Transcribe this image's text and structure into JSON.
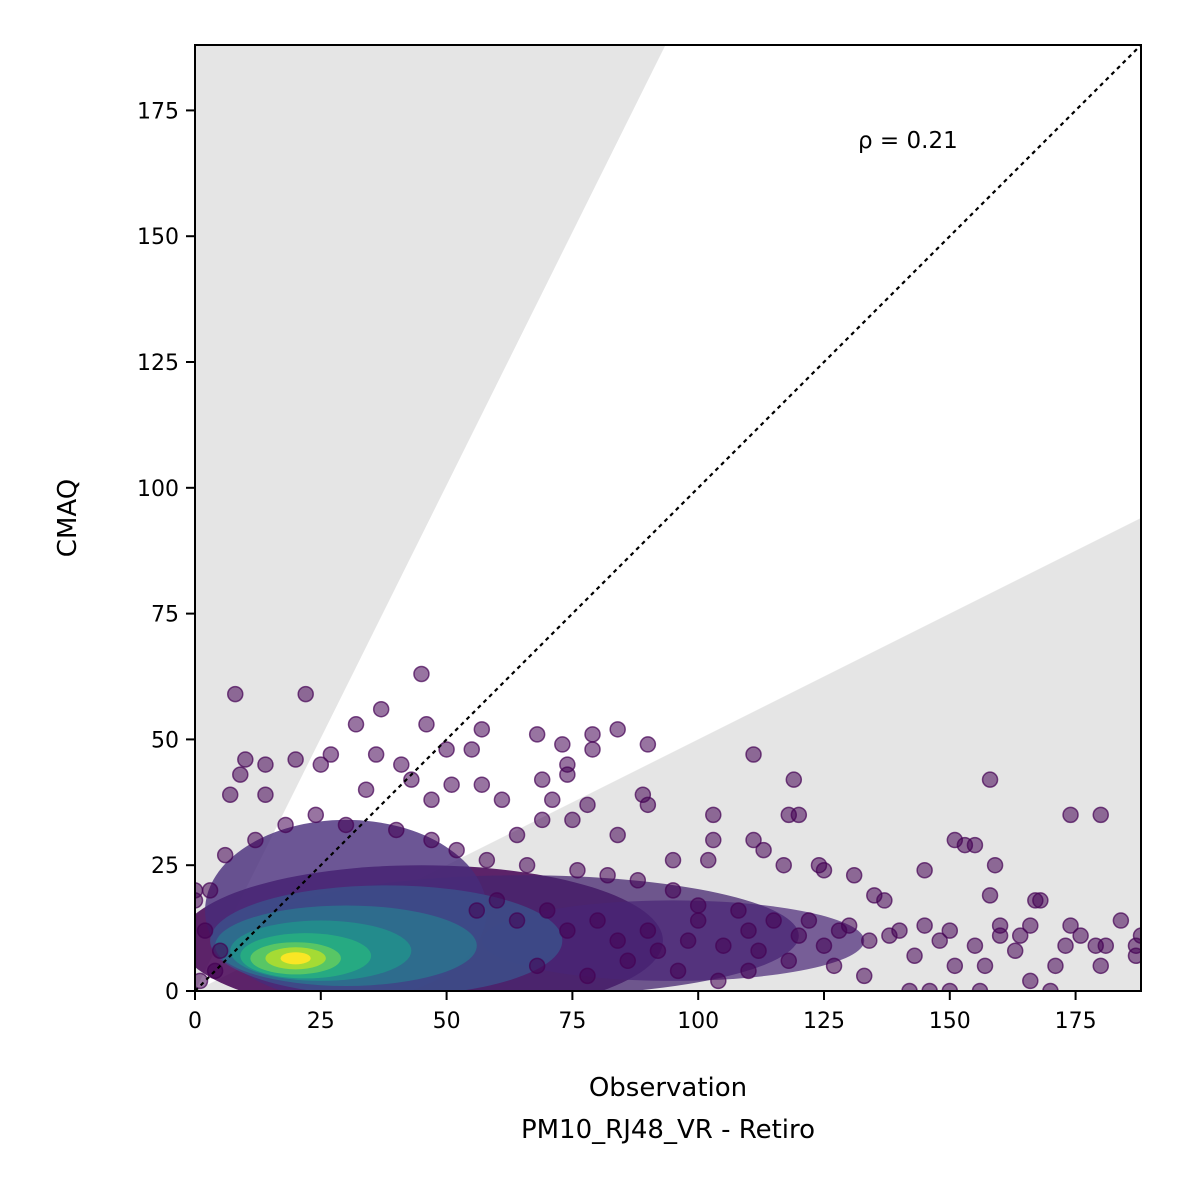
{
  "chart_data": {
    "type": "scatter",
    "title": "",
    "xlabel": "Observation",
    "xlabel_sub": "PM10_RJ48_VR - Retiro",
    "ylabel": "CMAQ",
    "xlim": [
      0,
      188
    ],
    "ylim": [
      0,
      188
    ],
    "x_ticks": [
      0,
      25,
      50,
      75,
      100,
      125,
      150,
      175
    ],
    "y_ticks": [
      0,
      25,
      50,
      75,
      100,
      125,
      150,
      175
    ],
    "annotation": "ρ = 0.21",
    "reference_line": {
      "style": "dotted",
      "color": "#000000",
      "from": [
        0,
        0
      ],
      "to": [
        188,
        188
      ]
    },
    "shaded_regions": [
      {
        "color": "#e5e5e5",
        "polygon": [
          [
            0,
            0
          ],
          [
            0,
            188
          ],
          [
            93.5,
            188
          ]
        ]
      },
      {
        "color": "#e5e5e5",
        "polygon": [
          [
            0,
            0
          ],
          [
            188,
            94
          ],
          [
            188,
            0
          ]
        ]
      }
    ],
    "colormap": "viridis (point density)",
    "grid": false,
    "legend": "none",
    "points": [
      [
        8,
        59
      ],
      [
        22,
        59
      ],
      [
        45,
        63
      ],
      [
        37,
        56
      ],
      [
        32,
        53
      ],
      [
        46,
        53
      ],
      [
        57,
        52
      ],
      [
        68,
        51
      ],
      [
        79,
        51
      ],
      [
        84,
        52
      ],
      [
        90,
        49
      ],
      [
        73,
        49
      ],
      [
        79,
        48
      ],
      [
        50,
        48
      ],
      [
        55,
        48
      ],
      [
        27,
        47
      ],
      [
        36,
        47
      ],
      [
        10,
        46
      ],
      [
        14,
        45
      ],
      [
        20,
        46
      ],
      [
        25,
        45
      ],
      [
        41,
        45
      ],
      [
        74,
        45
      ],
      [
        111,
        47
      ],
      [
        9,
        43
      ],
      [
        43,
        42
      ],
      [
        51,
        41
      ],
      [
        57,
        41
      ],
      [
        69,
        42
      ],
      [
        74,
        43
      ],
      [
        119,
        42
      ],
      [
        158,
        42
      ],
      [
        7,
        39
      ],
      [
        14,
        39
      ],
      [
        34,
        40
      ],
      [
        47,
        38
      ],
      [
        61,
        38
      ],
      [
        71,
        38
      ],
      [
        89,
        39
      ],
      [
        78,
        37
      ],
      [
        90,
        37
      ],
      [
        103,
        35
      ],
      [
        118,
        35
      ],
      [
        120,
        35
      ],
      [
        174,
        35
      ],
      [
        180,
        35
      ],
      [
        69,
        34
      ],
      [
        75,
        34
      ],
      [
        64,
        31
      ],
      [
        84,
        31
      ],
      [
        103,
        30
      ],
      [
        111,
        30
      ],
      [
        151,
        30
      ],
      [
        153,
        29
      ],
      [
        155,
        29
      ],
      [
        113,
        28
      ],
      [
        159,
        25
      ],
      [
        95,
        26
      ],
      [
        102,
        26
      ],
      [
        117,
        25
      ],
      [
        124,
        25
      ],
      [
        131,
        23
      ],
      [
        145,
        24
      ],
      [
        125,
        24
      ],
      [
        135,
        19
      ],
      [
        137,
        18
      ],
      [
        158,
        19
      ],
      [
        167,
        18
      ],
      [
        168,
        18
      ],
      [
        166,
        13
      ],
      [
        174,
        13
      ],
      [
        184,
        14
      ],
      [
        188,
        11
      ],
      [
        173,
        9
      ],
      [
        181,
        9
      ],
      [
        187,
        7
      ],
      [
        187,
        9
      ],
      [
        179,
        9
      ],
      [
        180,
        5
      ],
      [
        171,
        5
      ],
      [
        157,
        5
      ],
      [
        151,
        5
      ],
      [
        163,
        8
      ],
      [
        166,
        2
      ],
      [
        170,
        0
      ],
      [
        146,
        0
      ],
      [
        142,
        0
      ],
      [
        150,
        0
      ],
      [
        156,
        0
      ],
      [
        127,
        5
      ],
      [
        133,
        3
      ],
      [
        143,
        7
      ],
      [
        138,
        11
      ],
      [
        145,
        13
      ],
      [
        150,
        12
      ],
      [
        160,
        11
      ],
      [
        164,
        11
      ],
      [
        176,
        11
      ],
      [
        130,
        13
      ],
      [
        122,
        14
      ],
      [
        115,
        14
      ],
      [
        108,
        16
      ],
      [
        100,
        17
      ],
      [
        95,
        20
      ],
      [
        88,
        22
      ],
      [
        82,
        23
      ],
      [
        76,
        24
      ],
      [
        66,
        25
      ],
      [
        58,
        26
      ],
      [
        52,
        28
      ],
      [
        47,
        30
      ],
      [
        40,
        32
      ],
      [
        30,
        33
      ],
      [
        24,
        35
      ],
      [
        18,
        33
      ],
      [
        12,
        30
      ],
      [
        6,
        27
      ],
      [
        3,
        20
      ],
      [
        0,
        18
      ],
      [
        0,
        20
      ],
      [
        2,
        12
      ],
      [
        5,
        8
      ],
      [
        4,
        4
      ],
      [
        1,
        2
      ],
      [
        60,
        18
      ],
      [
        70,
        16
      ],
      [
        80,
        14
      ],
      [
        90,
        12
      ],
      [
        98,
        10
      ],
      [
        105,
        9
      ],
      [
        112,
        8
      ],
      [
        118,
        6
      ],
      [
        125,
        9
      ],
      [
        134,
        10
      ],
      [
        96,
        4
      ],
      [
        104,
        2
      ],
      [
        110,
        4
      ],
      [
        86,
        6
      ],
      [
        78,
        3
      ],
      [
        68,
        5
      ],
      [
        92,
        8
      ],
      [
        84,
        10
      ],
      [
        74,
        12
      ],
      [
        64,
        14
      ],
      [
        56,
        16
      ],
      [
        100,
        14
      ],
      [
        110,
        12
      ],
      [
        120,
        11
      ],
      [
        128,
        12
      ],
      [
        140,
        12
      ],
      [
        148,
        10
      ],
      [
        155,
        9
      ],
      [
        160,
        13
      ]
    ]
  }
}
